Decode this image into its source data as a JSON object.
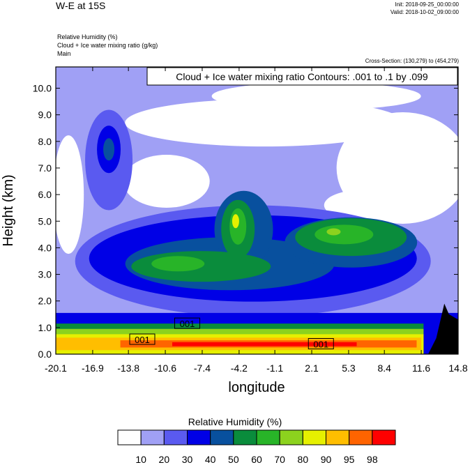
{
  "header": {
    "title": "W-E at 15S",
    "init": "Init: 2018-09-25_00:00:00",
    "valid": "Valid: 2018-10-02_09:00:00",
    "field1": "Relative Humidity   (%)",
    "field2": "Cloud + Ice water mixing ratio   (g/kg)",
    "field3": "Main",
    "cross_section": "Cross-Section: (130,279) to (454,279)"
  },
  "chart_data": {
    "type": "heatmap",
    "xlabel": "longitude",
    "ylabel": "Height (km)",
    "xlim": [
      -20.1,
      14.8
    ],
    "ylim": [
      0.0,
      10.8
    ],
    "x_ticks": [
      "-20.1",
      "-16.9",
      "-13.8",
      "-10.6",
      "-7.4",
      "-4.2",
      "-1.1",
      "2.1",
      "5.3",
      "8.4",
      "11.6",
      "14.8"
    ],
    "y_ticks": [
      "0.0",
      "1.0",
      "2.0",
      "3.0",
      "4.0",
      "5.0",
      "6.0",
      "7.0",
      "8.0",
      "9.0",
      "10.0"
    ],
    "contour_annotation": "Cloud + Ice water mixing ratio Contours: .001 to .1 by .099",
    "contour_labels": [
      {
        "text": "001",
        "x": -8.7,
        "y": 1.15
      },
      {
        "text": "001",
        "x": -12.6,
        "y": 0.55
      },
      {
        "text": "001",
        "x": 2.9,
        "y": 0.38
      }
    ],
    "colorbar": {
      "title": "Relative Humidity  (%)",
      "labels": [
        "10",
        "20",
        "30",
        "40",
        "50",
        "60",
        "70",
        "80",
        "90",
        "95",
        "98"
      ],
      "colors": [
        "#ffffff",
        "#a0a0f5",
        "#5a5af0",
        "#0000e6",
        "#08509e",
        "#0a8c3c",
        "#28b428",
        "#8cd21e",
        "#e6f000",
        "#ffbe00",
        "#ff6400",
        "#ff0000"
      ]
    }
  }
}
